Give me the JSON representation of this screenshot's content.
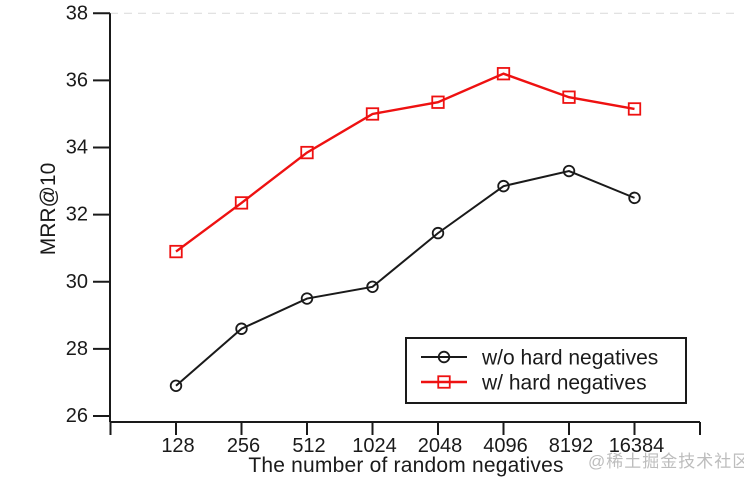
{
  "watermark": {
    "text": "@稀土掘金技术社区",
    "color": "#bdbdbd"
  },
  "chart_data": {
    "type": "line",
    "title": "",
    "xlabel": "The number of random negatives",
    "ylabel": "MRR@10",
    "categories": [
      "128",
      "256",
      "512",
      "1024",
      "2048",
      "4096",
      "8192",
      "16384"
    ],
    "series": [
      {
        "name": "w/o hard negatives",
        "marker": "circle",
        "color": "#1a1a1a",
        "values": [
          26.9,
          28.6,
          29.5,
          29.85,
          31.45,
          32.85,
          33.3,
          32.5
        ]
      },
      {
        "name": "w/ hard negatives",
        "marker": "square",
        "color": "#ee1111",
        "values": [
          30.9,
          32.35,
          33.85,
          35.0,
          35.35,
          36.2,
          35.5,
          35.15
        ]
      }
    ],
    "ylim": [
      26,
      38
    ],
    "ytick_step": 2,
    "grid": false,
    "legend_position": "lower right",
    "axis_color": "#1a1a1a"
  }
}
